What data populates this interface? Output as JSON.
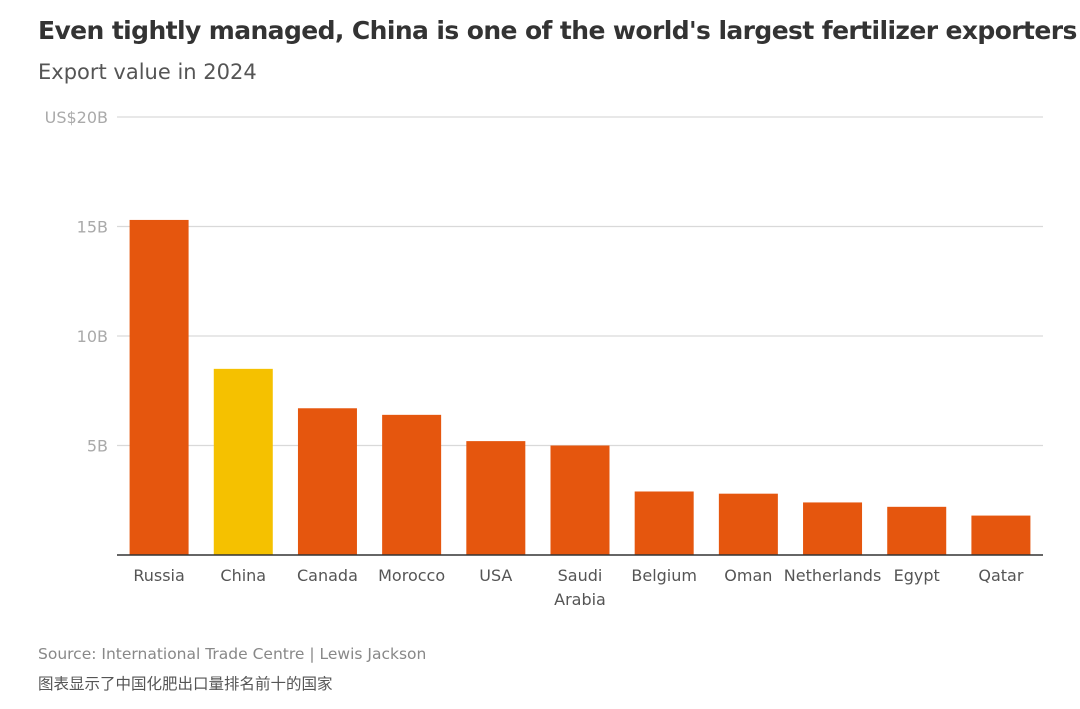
{
  "title": "Even tightly managed, China is one of the world's largest fertilizer exporters",
  "subtitle": "Export value in 2024",
  "source": "Source: International Trade Centre | Lewis Jackson",
  "note": "图表显示了中国化肥出口量排名前十的国家",
  "colors": {
    "default": "#e5560e",
    "highlight": "#f5c100",
    "grid": "#d9d9d9",
    "axis": "#333333"
  },
  "chart_data": {
    "type": "bar",
    "categories": [
      "Russia",
      "China",
      "Canada",
      "Morocco",
      "USA",
      "Saudi Arabia",
      "Belgium",
      "Oman",
      "Netherlands",
      "Egypt",
      "Qatar"
    ],
    "category_lines": [
      [
        "Russia"
      ],
      [
        "China"
      ],
      [
        "Canada"
      ],
      [
        "Morocco"
      ],
      [
        "USA"
      ],
      [
        "Saudi",
        "Arabia"
      ],
      [
        "Belgium"
      ],
      [
        "Oman"
      ],
      [
        "Netherlands"
      ],
      [
        "Egypt"
      ],
      [
        "Qatar"
      ]
    ],
    "values": [
      15.3,
      8.5,
      6.7,
      6.4,
      5.2,
      5.0,
      2.9,
      2.8,
      2.4,
      2.2,
      1.8
    ],
    "unit": "US$ billions",
    "highlight": "China",
    "ylim": [
      0,
      20
    ],
    "yticks": [
      5,
      10,
      15,
      20
    ],
    "ytick_labels": [
      "5B",
      "10B",
      "15B",
      "US$20B"
    ],
    "grid": true,
    "legend": "none"
  }
}
